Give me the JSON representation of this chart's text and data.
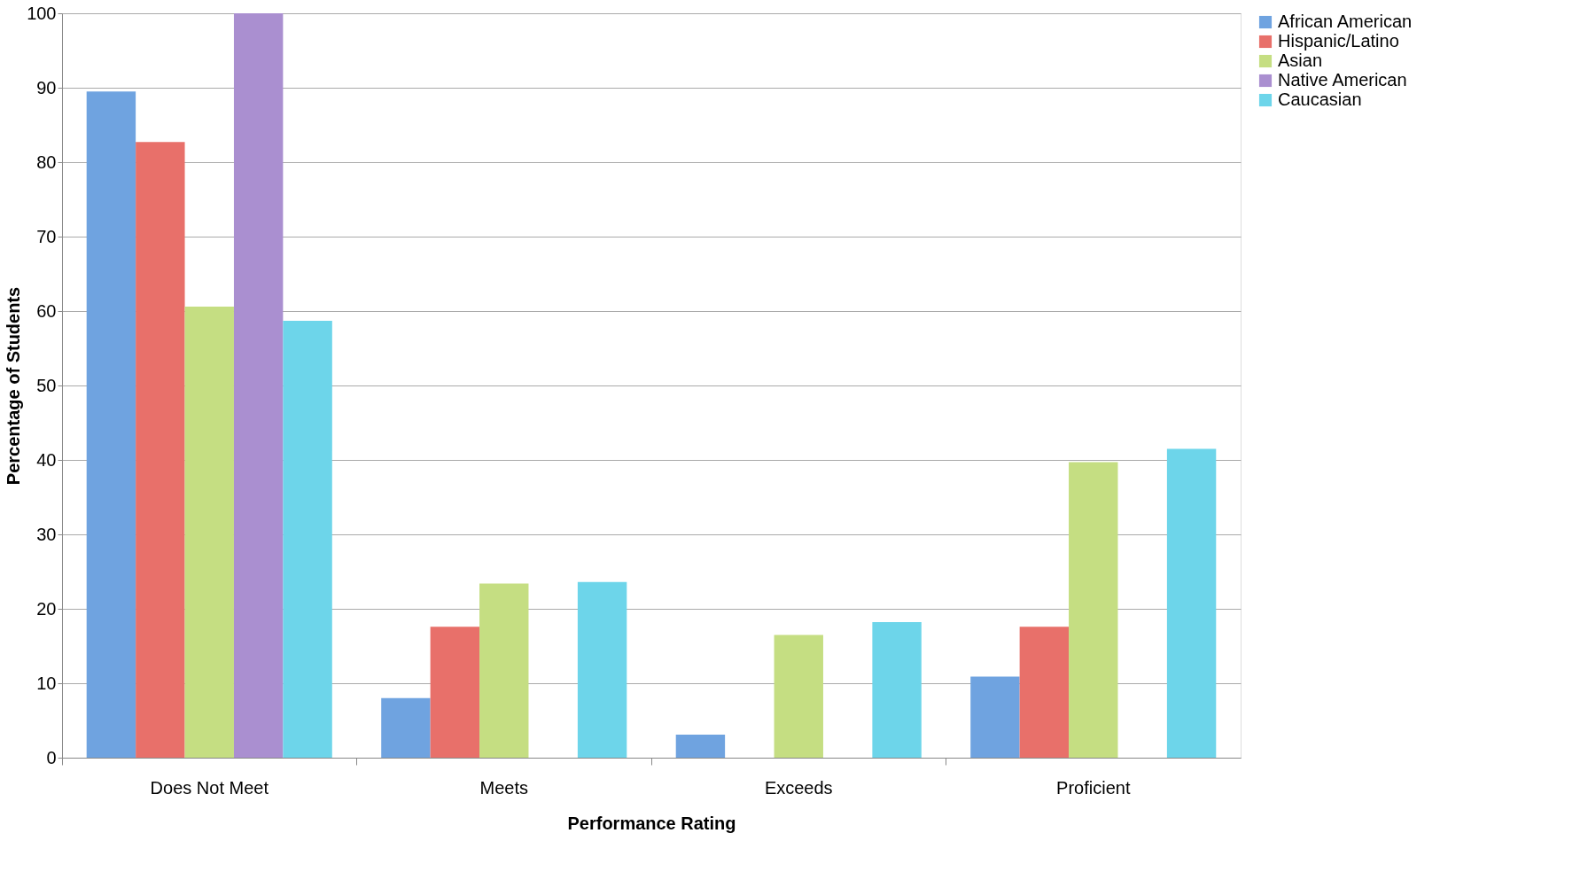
{
  "chart_data": {
    "type": "bar",
    "xlabel": "Performance Rating",
    "ylabel": "Percentage of Students",
    "categories": [
      "Does Not Meet",
      "Meets",
      "Exceeds",
      "Proficient"
    ],
    "series": [
      {
        "name": "African American",
        "color": "#6fa3e0",
        "values": [
          89.5,
          8,
          3.1,
          10.9
        ]
      },
      {
        "name": "Hispanic/Latino",
        "color": "#e8706a",
        "values": [
          82.7,
          17.6,
          0,
          17.6
        ]
      },
      {
        "name": "Asian",
        "color": "#c5de82",
        "values": [
          60.6,
          23.4,
          16.5,
          39.7
        ]
      },
      {
        "name": "Native American",
        "color": "#aa8fd0",
        "values": [
          100,
          0,
          0,
          0
        ]
      },
      {
        "name": "Caucasian",
        "color": "#6dd5ea",
        "values": [
          58.7,
          23.6,
          18.2,
          41.5
        ]
      }
    ],
    "ylim": [
      0,
      100
    ],
    "yticks": [
      0,
      10,
      20,
      30,
      40,
      50,
      60,
      70,
      80,
      90,
      100
    ],
    "grid": "y",
    "legend": "right"
  }
}
